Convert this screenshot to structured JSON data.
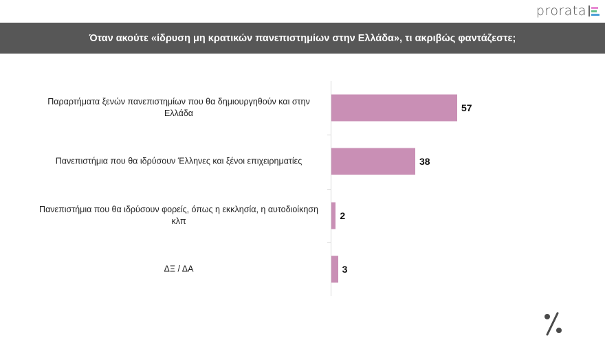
{
  "brand": {
    "logo_text": "prorata",
    "logo_bar_colors": [
      "#e88ad3",
      "#63c08a",
      "#4d9fd9"
    ]
  },
  "header": {
    "title": "Όταν ακούτε «ίδρυση μη κρατικών πανεπιστημίων στην Ελλάδα», τι ακριβώς φαντάζεστε;"
  },
  "colors": {
    "bar": "#c98fb5",
    "header_bg": "#575757",
    "axis": "#d9d9d9"
  },
  "footer": {
    "icon": "percent-icon"
  },
  "chart_data": {
    "type": "bar",
    "orientation": "horizontal",
    "title": "Όταν ακούτε «ίδρυση μη κρατικών πανεπιστημίων στην Ελλάδα», τι ακριβώς φαντάζεστε;",
    "categories": [
      "Παραρτήματα ξενών πανεπιστημίων που θα δημιουργηθούν και στην Ελλάδα",
      "Πανεπιστήμια που θα ιδρύσουν Έλληνες και ξένοι επιχειρηματίες",
      "Πανεπιστήμια που θα ιδρύσουν φορείς, όπως η εκκλησία, η αυτοδιοίκηση κλπ",
      "ΔΞ / ΔΑ"
    ],
    "values": [
      57,
      38,
      2,
      3
    ],
    "value_labels": [
      "57",
      "38",
      "2",
      "3"
    ],
    "xlabel": "",
    "ylabel": "",
    "unit": "%",
    "xlim": [
      0,
      100
    ],
    "grid": false,
    "legend": null
  }
}
